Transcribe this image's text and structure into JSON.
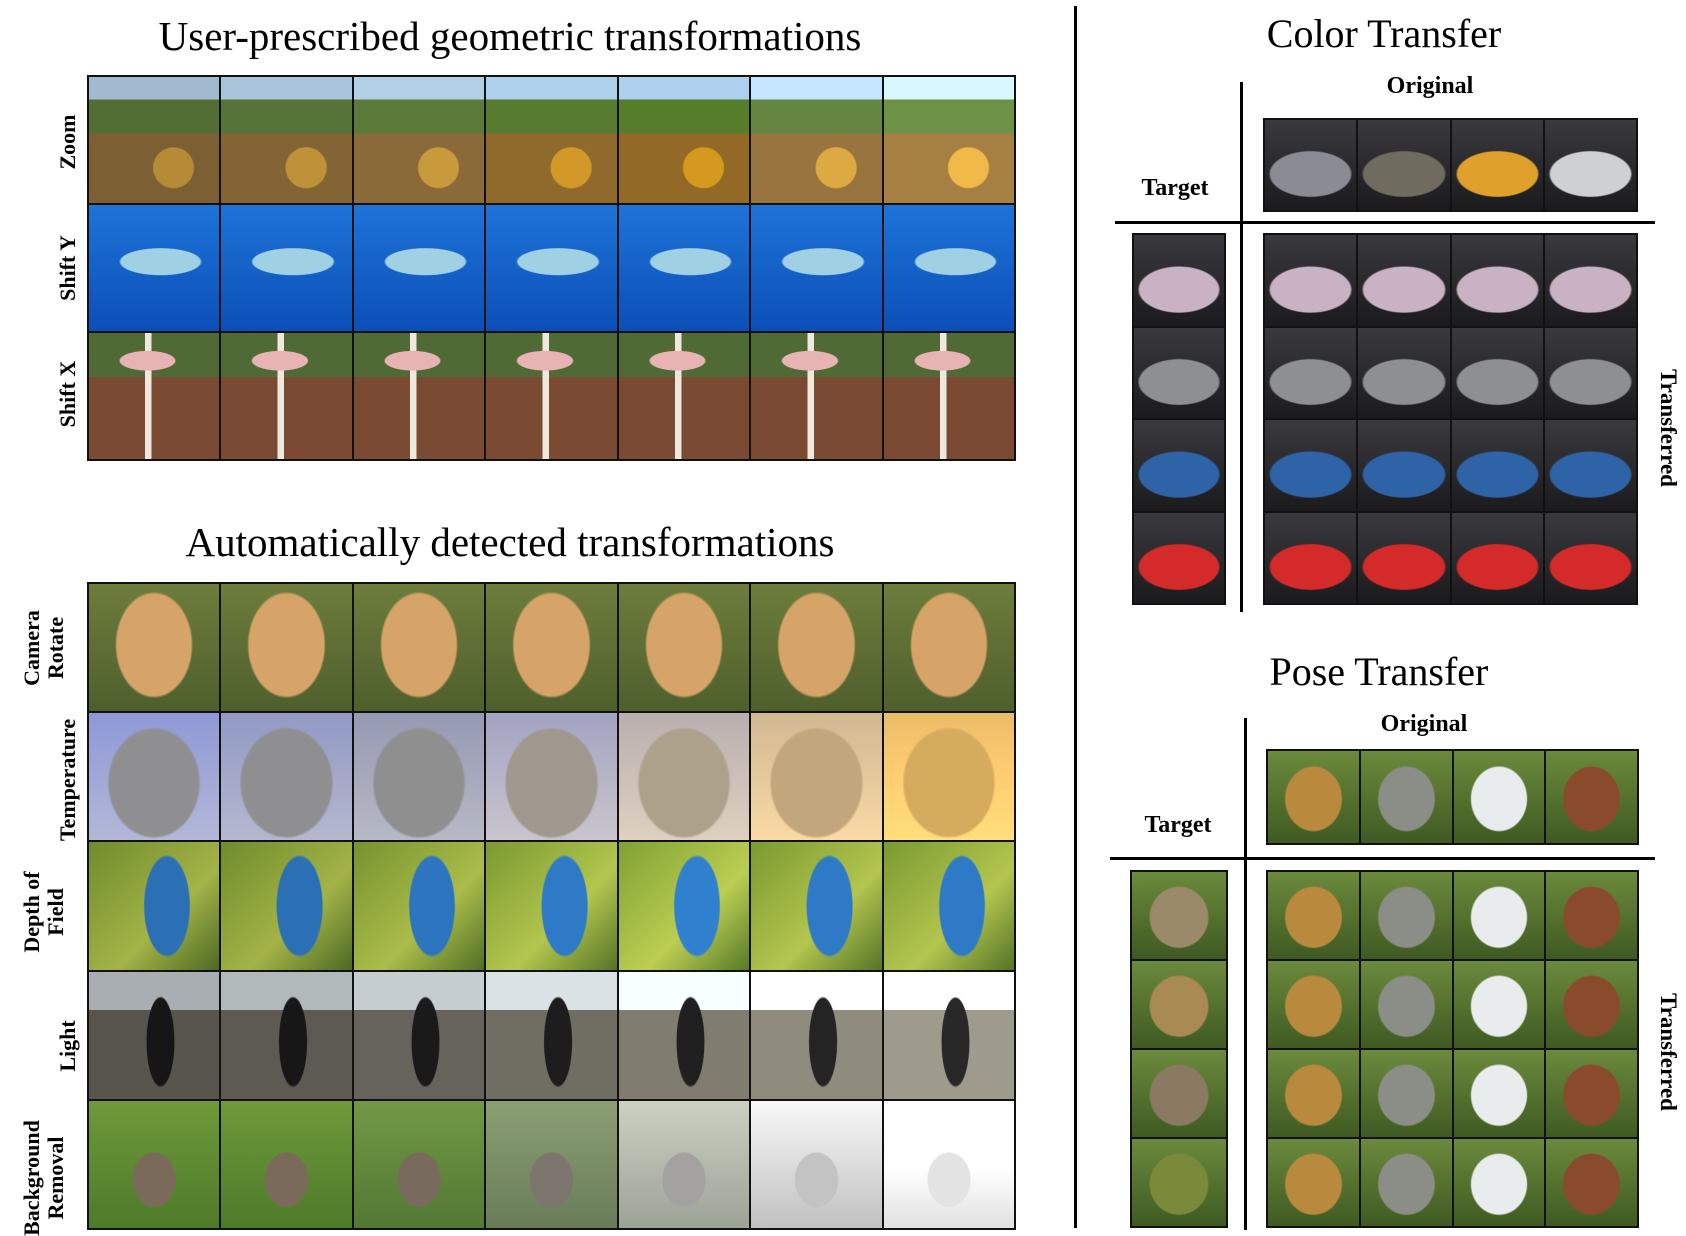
{
  "left": {
    "user_title": "User-prescribed geometric transformations",
    "user_rows": [
      "Zoom",
      "Shift Y",
      "Shift X"
    ],
    "auto_title": "Automatically detected transformations",
    "auto_rows": [
      [
        "Camera",
        "Rotate"
      ],
      [
        "Temperature"
      ],
      [
        "Depth of",
        "Field"
      ],
      [
        "Light"
      ],
      [
        "Background",
        "Removal"
      ]
    ]
  },
  "color_transfer": {
    "title": "Color Transfer",
    "original_label": "Original",
    "target_label": "Target",
    "transferred_label": "Transferred",
    "originals": [
      "#8a8b93",
      "#6f6c5f",
      "#e0a02c",
      "#cfd0d2"
    ],
    "targets": [
      "#c9b2c4",
      "#8d8f92",
      "#2f63a8",
      "#d42a2a"
    ]
  },
  "pose_transfer": {
    "title": "Pose Transfer",
    "original_label": "Original",
    "target_label": "Target",
    "transferred_label": "Transferred",
    "originals": [
      "#b98a3e",
      "#8a8e86",
      "#e8ecec",
      "#8a4a2c"
    ],
    "targets": [
      "#9a8a6a",
      "#a88a52",
      "#8a7a62",
      "#7a8a3a"
    ]
  }
}
